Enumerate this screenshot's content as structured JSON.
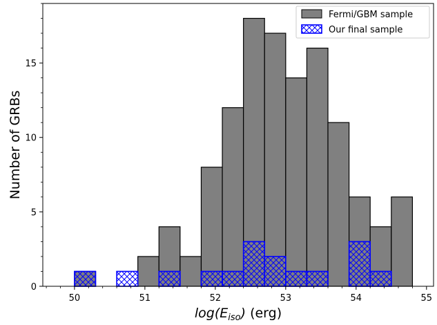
{
  "chart_data": {
    "type": "bar",
    "subtype": "histogram",
    "xlabel_main": "log(E",
    "xlabel_sub": "iso",
    "xlabel_close": ")",
    "xlabel_unit": " (erg)",
    "ylabel": "Number of GRBs",
    "xlim": [
      49.55,
      55.1
    ],
    "ylim": [
      0,
      19
    ],
    "xticks": [
      50,
      51,
      52,
      53,
      54,
      55
    ],
    "yticks": [
      0,
      5,
      10,
      15
    ],
    "grid": false,
    "legend_position": "top-right",
    "bin_edges": [
      50.0,
      50.3,
      50.6,
      50.9,
      51.2,
      51.5,
      51.8,
      52.1,
      52.4,
      52.7,
      53.0,
      53.3,
      53.6,
      53.9,
      54.2,
      54.5,
      54.8
    ],
    "series": [
      {
        "name": "Fermi/GBM sample",
        "color": "#808080",
        "values": [
          1,
          0,
          0,
          2,
          4,
          2,
          8,
          12,
          18,
          17,
          14,
          16,
          11,
          6,
          4,
          6
        ]
      },
      {
        "name": "Our final sample",
        "color": "#0000ff",
        "hatch": "crosshatch",
        "values": [
          1,
          0,
          1,
          0,
          1,
          0,
          1,
          1,
          3,
          2,
          1,
          1,
          0,
          3,
          1,
          0
        ]
      }
    ]
  }
}
